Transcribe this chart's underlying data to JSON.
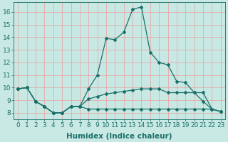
{
  "bg_color": "#c8e8e4",
  "grid_color": "#e8a0a0",
  "line_color": "#1a7068",
  "marker": "D",
  "markersize": 2.0,
  "linewidth": 0.9,
  "xlabel": "Humidex (Indice chaleur)",
  "xlabel_fontsize": 7.5,
  "tick_fontsize": 6.5,
  "xlim": [
    -0.5,
    23.5
  ],
  "ylim": [
    7.5,
    16.75
  ],
  "xticks": [
    0,
    1,
    2,
    3,
    4,
    5,
    6,
    7,
    8,
    9,
    10,
    11,
    12,
    13,
    14,
    15,
    16,
    17,
    18,
    19,
    20,
    21,
    22,
    23
  ],
  "yticks": [
    8,
    9,
    10,
    11,
    12,
    13,
    14,
    15,
    16
  ],
  "series": [
    [
      9.9,
      10.0,
      8.9,
      8.5,
      8.0,
      8.0,
      8.5,
      8.5,
      9.9,
      11.0,
      13.9,
      13.8,
      14.4,
      16.2,
      16.4,
      12.8,
      12.0,
      11.8,
      10.5,
      10.4,
      9.6,
      8.9,
      8.3,
      8.1
    ],
    [
      9.9,
      10.0,
      8.9,
      8.5,
      8.0,
      8.0,
      8.5,
      8.5,
      9.1,
      9.3,
      9.5,
      9.6,
      9.7,
      9.8,
      9.9,
      9.9,
      9.9,
      9.6,
      9.6,
      9.6,
      9.6,
      9.6,
      8.3,
      8.1
    ],
    [
      9.9,
      10.0,
      8.9,
      8.5,
      8.0,
      8.0,
      8.5,
      8.5,
      8.3,
      8.3,
      8.3,
      8.3,
      8.3,
      8.3,
      8.3,
      8.3,
      8.3,
      8.3,
      8.3,
      8.3,
      8.3,
      8.3,
      8.3,
      8.1
    ]
  ],
  "figsize": [
    3.2,
    2.0
  ],
  "dpi": 100
}
